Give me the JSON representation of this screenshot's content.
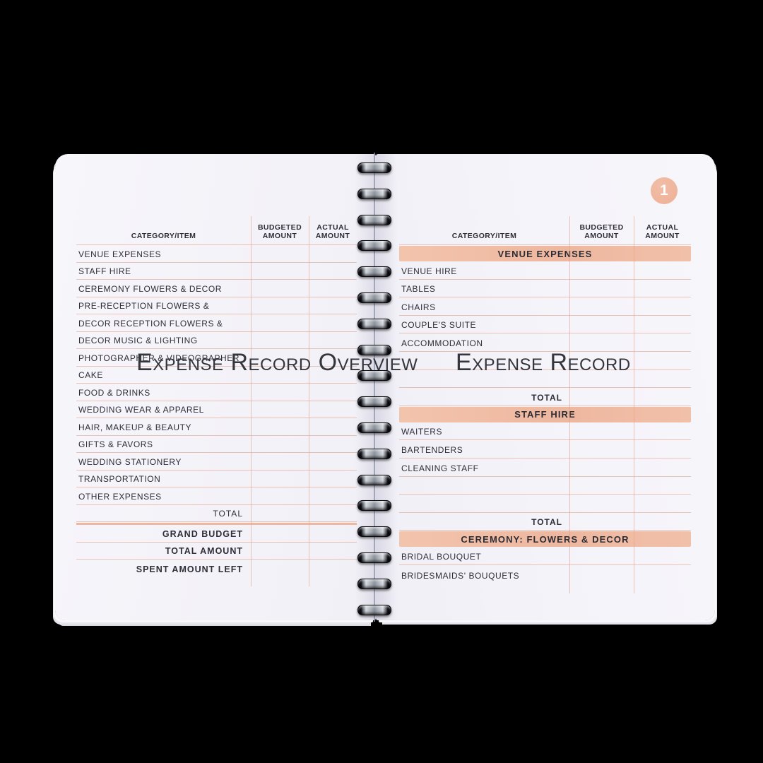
{
  "colors": {
    "background": "#000000",
    "paper": "#f4f3f9",
    "accent": "#eeb79f",
    "line": "#dd9a7e8c",
    "text": "#2e2e38",
    "badge": "#edb096"
  },
  "table_headers": {
    "category": "CATEGORY/ITEM",
    "budgeted": "BUDGETED\nAMOUNT",
    "actual": "ACTUAL\nAMOUNT"
  },
  "left_page": {
    "title": "Expense Record Overview",
    "rows": [
      "VENUE EXPENSES",
      "STAFF HIRE",
      "CEREMONY FLOWERS & DECOR",
      "PRE-RECEPTION FLOWERS &",
      "DECOR RECEPTION FLOWERS &",
      "DECOR MUSIC & LIGHTING",
      "PHOTOGRAPHER  &  VIDEOGRAPHER",
      "CAKE",
      "FOOD & DRINKS",
      "WEDDING WEAR & APPAREL",
      "HAIR, MAKEUP & BEAUTY",
      "GIFTS & FAVORS",
      "WEDDING STATIONERY",
      "TRANSPORTATION",
      "OTHER EXPENSES"
    ],
    "total_label": "TOTAL",
    "summary_rows": [
      "GRAND BUDGET",
      "TOTAL AMOUNT",
      "SPENT AMOUNT LEFT"
    ]
  },
  "right_page": {
    "title": "Expense Record",
    "page_number": "1",
    "sections": [
      {
        "title": "VENUE EXPENSES",
        "rows": [
          "VENUE HIRE",
          "TABLES",
          "CHAIRS",
          "COUPLE'S SUITE",
          "ACCOMMODATION",
          "",
          ""
        ],
        "total_label": "TOTAL"
      },
      {
        "title": "STAFF HIRE",
        "rows": [
          "WAITERS",
          "BARTENDERS",
          "CLEANING STAFF",
          "",
          ""
        ],
        "total_label": "TOTAL"
      },
      {
        "title": "CEREMONY: FLOWERS & DECOR",
        "rows": [
          "BRIDAL BOUQUET",
          "BRIDESMAIDS' BOUQUETS"
        ],
        "total_label": ""
      }
    ]
  }
}
